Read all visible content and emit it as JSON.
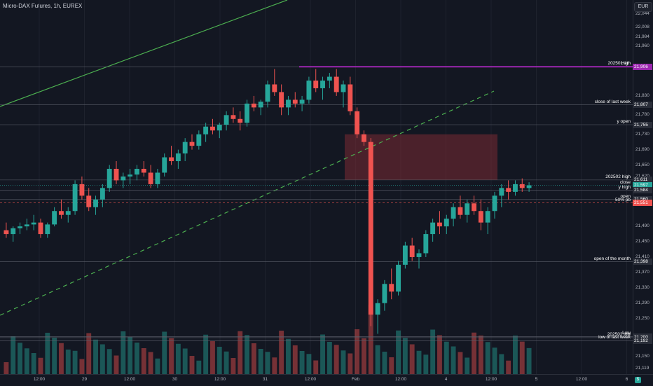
{
  "header": {
    "title": "Micro-DAX Futures, 1h, EUREX",
    "currency": "EUR"
  },
  "colors": {
    "up": "#26a69a",
    "down": "#ef5350",
    "ath": "#9c27b0",
    "trend": "#4caf50",
    "background": "#131722",
    "zone": "#7a2a33"
  },
  "price_axis": {
    "min": 21105,
    "max": 22080,
    "ticks": [
      "22,068",
      "22,044",
      "22,008",
      "21,984",
      "21,960",
      "21,906",
      "21,830",
      "21,807",
      "21,780",
      "21,755",
      "21,730",
      "21,690",
      "21,650",
      "21,620",
      "21,611",
      "21,597",
      "21,584",
      "21,560",
      "21,551",
      "21,490",
      "21,450",
      "21,410",
      "21,398",
      "21,370",
      "21,330",
      "21,290",
      "21,250",
      "21,203",
      "21,200",
      "21,192",
      "21,150",
      "21,119"
    ]
  },
  "time_axis": {
    "labels": [
      "12:00",
      "29",
      "12:00",
      "30",
      "12:00",
      "31",
      "12:00",
      "Feb",
      "12:00",
      "4",
      "12:00",
      "5",
      "12:00",
      "6"
    ]
  },
  "levels": [
    {
      "key": "high",
      "label": "High",
      "price": "21,906",
      "badge_bg": "#2962ff"
    },
    {
      "key": "ath",
      "label": "202501 ath",
      "price": "21,906",
      "badge_bg": "#9c27b0"
    },
    {
      "key": "close_last_week",
      "label": "close of last week",
      "price": "21,807",
      "badge_bg": "#2a2e39"
    },
    {
      "key": "y_open",
      "label": "y open",
      "price": "21,755",
      "badge_bg": "#2a2e39"
    },
    {
      "key": "h202502",
      "label": "202502 high",
      "price": "21,611",
      "badge_bg": "#2a2e39"
    },
    {
      "key": "close",
      "label": "close",
      "price": "21,597",
      "badge_bg": "#26a69a"
    },
    {
      "key": "y_high",
      "label": "y high",
      "price": "21,584",
      "badge_bg": "#2a2e39"
    },
    {
      "key": "open",
      "label": "open",
      "price": "21,560",
      "badge_bg": "#2a2e39"
    },
    {
      "key": "pb50",
      "label": "50% pb",
      "price": "21,551",
      "badge_bg": "#ef5350"
    },
    {
      "key": "open_month",
      "label": "open of the month",
      "price": "21,398",
      "badge_bg": "#2a2e39"
    },
    {
      "key": "low",
      "label": "Low",
      "price": "21,203",
      "badge_bg": "#2a2e39"
    },
    {
      "key": "low202502",
      "label": "202502 low",
      "price": "21,200",
      "badge_bg": "#2a2e39"
    },
    {
      "key": "low_last_week",
      "label": "low of last week",
      "price": "21,192",
      "badge_bg": "#2a2e39"
    }
  ],
  "chart_data": {
    "type": "candlestick",
    "title": "Micro-DAX Futures, 1h, EUREX",
    "y_range": [
      21105,
      22080
    ],
    "candles": [
      [
        21480,
        21500,
        21460,
        21470
      ],
      [
        21470,
        21490,
        21450,
        21485
      ],
      [
        21485,
        21500,
        21470,
        21490
      ],
      [
        21490,
        21510,
        21480,
        21495
      ],
      [
        21495,
        21520,
        21480,
        21500
      ],
      [
        21500,
        21510,
        21460,
        21470
      ],
      [
        21470,
        21500,
        21460,
        21495
      ],
      [
        21495,
        21540,
        21490,
        21530
      ],
      [
        21530,
        21560,
        21510,
        21520
      ],
      [
        21520,
        21540,
        21500,
        21530
      ],
      [
        21530,
        21610,
        21520,
        21600
      ],
      [
        21600,
        21620,
        21560,
        21570
      ],
      [
        21570,
        21590,
        21530,
        21540
      ],
      [
        21540,
        21570,
        21520,
        21560
      ],
      [
        21560,
        21600,
        21540,
        21590
      ],
      [
        21590,
        21650,
        21580,
        21640
      ],
      [
        21640,
        21660,
        21600,
        21610
      ],
      [
        21610,
        21630,
        21590,
        21620
      ],
      [
        21620,
        21640,
        21600,
        21625
      ],
      [
        21625,
        21650,
        21610,
        21640
      ],
      [
        21640,
        21660,
        21620,
        21630
      ],
      [
        21630,
        21650,
        21590,
        21600
      ],
      [
        21600,
        21640,
        21590,
        21630
      ],
      [
        21630,
        21680,
        21620,
        21670
      ],
      [
        21670,
        21700,
        21650,
        21660
      ],
      [
        21660,
        21690,
        21640,
        21680
      ],
      [
        21680,
        21720,
        21660,
        21710
      ],
      [
        21710,
        21730,
        21690,
        21700
      ],
      [
        21700,
        21740,
        21690,
        21730
      ],
      [
        21730,
        21760,
        21710,
        21750
      ],
      [
        21750,
        21770,
        21730,
        21740
      ],
      [
        21740,
        21760,
        21720,
        21755
      ],
      [
        21755,
        21790,
        21740,
        21780
      ],
      [
        21780,
        21800,
        21760,
        21770
      ],
      [
        21770,
        21790,
        21740,
        21760
      ],
      [
        21760,
        21820,
        21750,
        21810
      ],
      [
        21810,
        21830,
        21790,
        21800
      ],
      [
        21800,
        21820,
        21780,
        21815
      ],
      [
        21815,
        21870,
        21800,
        21860
      ],
      [
        21860,
        21900,
        21830,
        21840
      ],
      [
        21840,
        21860,
        21780,
        21800
      ],
      [
        21800,
        21830,
        21780,
        21820
      ],
      [
        21820,
        21840,
        21800,
        21810
      ],
      [
        21810,
        21830,
        21790,
        21820
      ],
      [
        21820,
        21880,
        21810,
        21870
      ],
      [
        21870,
        21900,
        21840,
        21850
      ],
      [
        21850,
        21880,
        21820,
        21870
      ],
      [
        21870,
        21890,
        21850,
        21880
      ],
      [
        21880,
        21900,
        21830,
        21840
      ],
      [
        21840,
        21870,
        21800,
        21860
      ],
      [
        21860,
        21880,
        21780,
        21790
      ],
      [
        21790,
        21800,
        21720,
        21730
      ],
      [
        21730,
        21740,
        21700,
        21710
      ],
      [
        21710,
        21720,
        21230,
        21260
      ],
      [
        21260,
        21300,
        21210,
        21290
      ],
      [
        21290,
        21350,
        21270,
        21340
      ],
      [
        21340,
        21380,
        21300,
        21320
      ],
      [
        21320,
        21400,
        21310,
        21390
      ],
      [
        21390,
        21450,
        21380,
        21440
      ],
      [
        21440,
        21460,
        21400,
        21410
      ],
      [
        21410,
        21430,
        21380,
        21420
      ],
      [
        21420,
        21480,
        21410,
        21470
      ],
      [
        21470,
        21510,
        21450,
        21500
      ],
      [
        21500,
        21530,
        21470,
        21490
      ],
      [
        21490,
        21520,
        21470,
        21510
      ],
      [
        21510,
        21550,
        21490,
        21540
      ],
      [
        21540,
        21570,
        21510,
        21520
      ],
      [
        21520,
        21560,
        21500,
        21550
      ],
      [
        21550,
        21570,
        21520,
        21530
      ],
      [
        21530,
        21560,
        21480,
        21500
      ],
      [
        21500,
        21540,
        21470,
        21530
      ],
      [
        21530,
        21580,
        21510,
        21570
      ],
      [
        21570,
        21600,
        21540,
        21590
      ],
      [
        21590,
        21610,
        21560,
        21580
      ],
      [
        21580,
        21610,
        21570,
        21600
      ],
      [
        21600,
        21615,
        21580,
        21590
      ],
      [
        21590,
        21605,
        21580,
        21597
      ]
    ]
  }
}
